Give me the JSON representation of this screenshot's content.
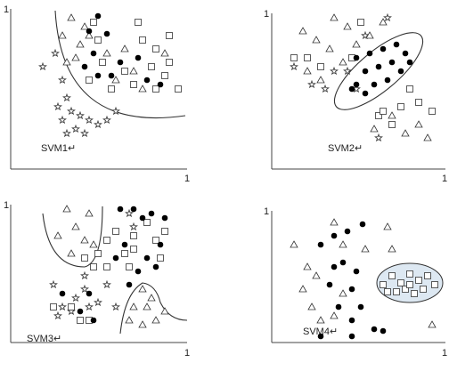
{
  "panels": [
    {
      "label": "SVM1↵",
      "y_max_label": "1",
      "x_max_label": "1"
    },
    {
      "label": "SVM2↵",
      "y_max_label": "1",
      "x_max_label": "1"
    },
    {
      "label": "SVM3↵",
      "y_max_label": "1",
      "x_max_label": "1"
    },
    {
      "label": "SVM4↵",
      "y_max_label": "1",
      "x_max_label": "1"
    }
  ]
}
